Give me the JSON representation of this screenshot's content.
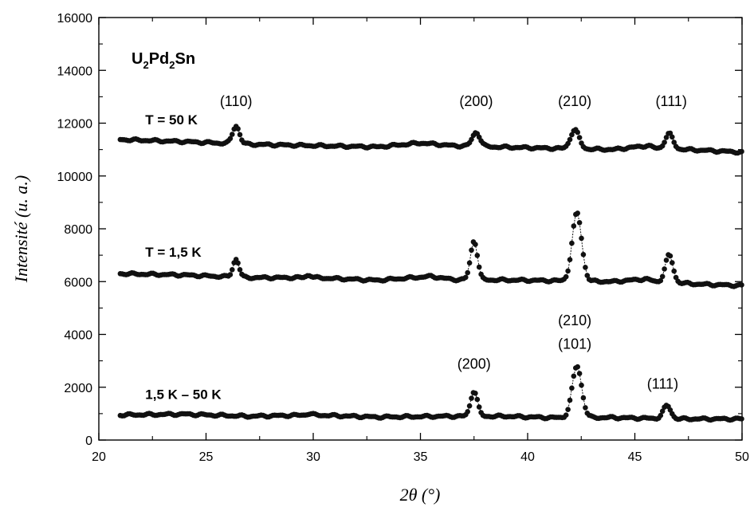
{
  "chart_data": {
    "type": "scatter",
    "title": "",
    "compound": {
      "main": "U",
      "sub1": "2",
      "mid": "Pd",
      "sub2": "2",
      "end": "Sn"
    },
    "xlabel": "2θ (°)",
    "ylabel": "Intensité (u. a.)",
    "xlim": [
      20,
      50
    ],
    "ylim": [
      0,
      16000
    ],
    "xticks": [
      20,
      25,
      30,
      35,
      40,
      45,
      50
    ],
    "yticks": [
      0,
      2000,
      4000,
      6000,
      8000,
      10000,
      12000,
      14000,
      16000
    ],
    "grid": false,
    "marker_color": "#111111",
    "series": [
      {
        "name": "T = 50 K",
        "baseline": [
          [
            21,
            11380
          ],
          [
            24,
            11300
          ],
          [
            27,
            11200
          ],
          [
            30,
            11150
          ],
          [
            33,
            11100
          ],
          [
            35,
            11250
          ],
          [
            36.5,
            11150
          ],
          [
            38.5,
            11100
          ],
          [
            41,
            11050
          ],
          [
            44,
            11000
          ],
          [
            45.6,
            11150
          ],
          [
            46,
            11050
          ],
          [
            48,
            10980
          ],
          [
            50,
            10900
          ]
        ],
        "peaks": [
          [
            26.4,
            11900,
            0.16
          ],
          [
            37.6,
            11650,
            0.18
          ],
          [
            42.2,
            11750,
            0.2
          ],
          [
            46.6,
            11600,
            0.18
          ]
        ]
      },
      {
        "name": "T = 1,5 K",
        "baseline": [
          [
            21,
            6300
          ],
          [
            24,
            6250
          ],
          [
            27,
            6150
          ],
          [
            30,
            6150
          ],
          [
            33,
            6050
          ],
          [
            35.5,
            6200
          ],
          [
            36.5,
            6080
          ],
          [
            40,
            6050
          ],
          [
            44,
            6000
          ],
          [
            45.5,
            6100
          ],
          [
            46,
            6000
          ],
          [
            48,
            5900
          ],
          [
            50,
            5850
          ]
        ],
        "peaks": [
          [
            26.4,
            6850,
            0.14
          ],
          [
            29.8,
            6250,
            0.12
          ],
          [
            37.5,
            7550,
            0.16
          ],
          [
            42.3,
            8600,
            0.22
          ],
          [
            46.6,
            7000,
            0.18
          ]
        ]
      },
      {
        "name": "1,5 K – 50 K",
        "baseline": [
          [
            21,
            950
          ],
          [
            24,
            980
          ],
          [
            27,
            900
          ],
          [
            30,
            950
          ],
          [
            33,
            870
          ],
          [
            36,
            900
          ],
          [
            39,
            900
          ],
          [
            41,
            850
          ],
          [
            44,
            850
          ],
          [
            47,
            800
          ],
          [
            50,
            800
          ]
        ],
        "peaks": [
          [
            29.8,
            1000,
            0.12
          ],
          [
            37.5,
            1850,
            0.16
          ],
          [
            42.3,
            2800,
            0.22
          ],
          [
            46.5,
            1300,
            0.18
          ]
        ]
      }
    ],
    "annotations": [
      {
        "text": "(110)",
        "x": 26.4,
        "y": 12650
      },
      {
        "text": "(200)",
        "x": 37.6,
        "y": 12650
      },
      {
        "text": "(210)",
        "x": 42.2,
        "y": 12650
      },
      {
        "text": "(111)",
        "x": 46.7,
        "y": 12650
      },
      {
        "text": "(210)",
        "x": 42.2,
        "y": 4350
      },
      {
        "text": "(101)",
        "x": 42.2,
        "y": 3450
      },
      {
        "text": "(200)",
        "x": 37.5,
        "y": 2700
      },
      {
        "text": "(111)",
        "x": 46.3,
        "y": 1950
      }
    ],
    "series_labels": [
      {
        "text": "T = 50 K",
        "x": 21.2,
        "y": 11950
      },
      {
        "text": "T = 1,5 K",
        "x": 21.2,
        "y": 6950
      },
      {
        "text": "1,5 K – 50 K",
        "x": 21.2,
        "y": 1550
      }
    ]
  }
}
